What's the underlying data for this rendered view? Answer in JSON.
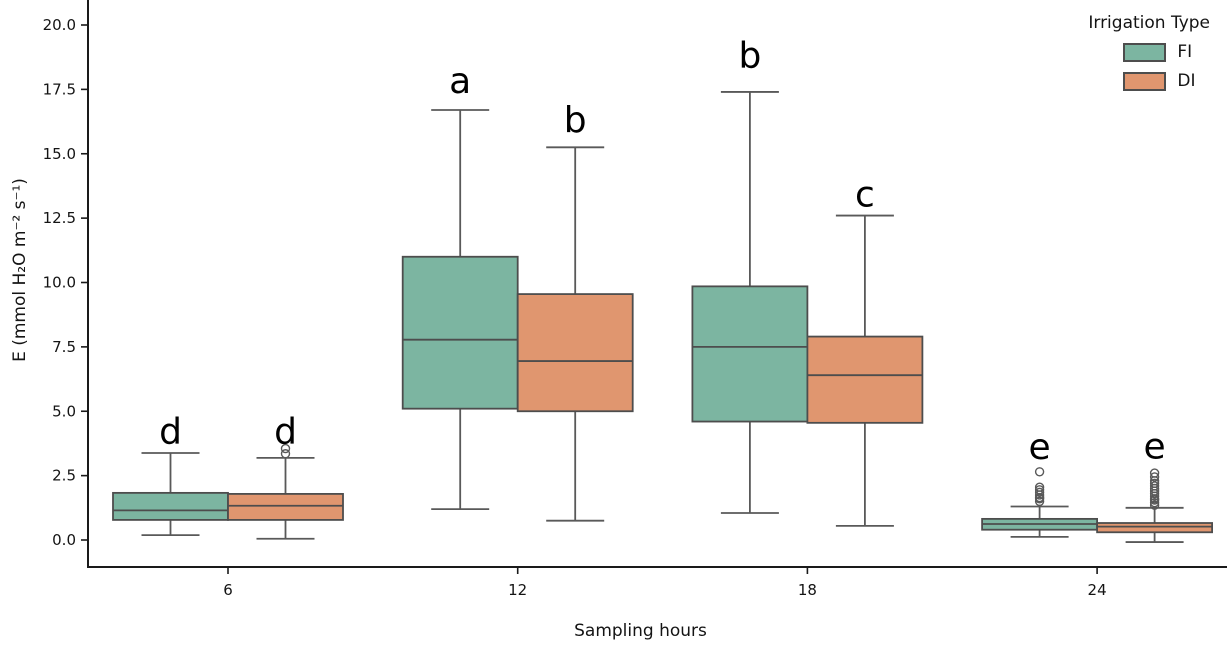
{
  "chart_data": {
    "type": "grouped_boxplot",
    "title": "",
    "xlabel": "Sampling hours",
    "ylabel": "E (mmol H₂O m⁻² s⁻¹)",
    "categories": [
      "6",
      "12",
      "18",
      "24"
    ],
    "ytick_labels": [
      "0.0",
      "2.5",
      "5.0",
      "7.5",
      "10.0",
      "12.5",
      "15.0",
      "17.5",
      "20.0"
    ],
    "ylim": [
      -1.05,
      22.0
    ],
    "grid": "off",
    "legend": {
      "title": "Irrigation Type",
      "position": "upper right",
      "entries": [
        {
          "label": "FI",
          "color": "#7cb5a1"
        },
        {
          "label": "DI",
          "color": "#e0966f"
        }
      ]
    },
    "style": {
      "box_edge_color": "#4d4d4d",
      "whisker_color": "#595959",
      "spine_color": "#1a1a1a",
      "text_color": "#141414"
    },
    "series": [
      {
        "name": "FI",
        "color": "#7cb5a1",
        "boxes": [
          {
            "category": "6",
            "whisker_low": 0.19,
            "q1": 0.78,
            "median": 1.15,
            "q3": 1.83,
            "whisker_high": 3.38,
            "outliers": []
          },
          {
            "category": "12",
            "whisker_low": 1.2,
            "q1": 5.1,
            "median": 7.78,
            "q3": 11.0,
            "whisker_high": 16.7,
            "outliers": []
          },
          {
            "category": "18",
            "whisker_low": 1.05,
            "q1": 4.6,
            "median": 7.5,
            "q3": 9.85,
            "whisker_high": 17.4,
            "outliers": []
          },
          {
            "category": "24",
            "whisker_low": 0.12,
            "q1": 0.4,
            "median": 0.62,
            "q3": 0.82,
            "whisker_high": 1.3,
            "outliers": [
              1.5,
              1.6,
              1.65,
              1.75,
              1.85,
              1.95,
              2.05,
              2.65
            ]
          }
        ]
      },
      {
        "name": "DI",
        "color": "#e0966f",
        "boxes": [
          {
            "category": "6",
            "whisker_low": 0.05,
            "q1": 0.78,
            "median": 1.33,
            "q3": 1.79,
            "whisker_high": 3.19,
            "outliers": [
              3.35,
              3.55
            ]
          },
          {
            "category": "12",
            "whisker_low": 0.75,
            "q1": 5.0,
            "median": 6.95,
            "q3": 9.55,
            "whisker_high": 15.25,
            "outliers": []
          },
          {
            "category": "18",
            "whisker_low": 0.55,
            "q1": 4.55,
            "median": 6.4,
            "q3": 7.9,
            "whisker_high": 12.6,
            "outliers": []
          },
          {
            "category": "24",
            "whisker_low": -0.08,
            "q1": 0.3,
            "median": 0.52,
            "q3": 0.66,
            "whisker_high": 1.25,
            "outliers": [
              1.35,
              1.45,
              1.55,
              1.6,
              1.7,
              1.8,
              1.9,
              2.0,
              2.1,
              2.2,
              2.3,
              2.45,
              2.6
            ]
          }
        ]
      }
    ],
    "annotations": [
      {
        "text": "d",
        "category": "6",
        "series": "FI",
        "y": 4.2
      },
      {
        "text": "d",
        "category": "6",
        "series": "DI",
        "y": 4.2
      },
      {
        "text": "a",
        "category": "12",
        "series": "FI",
        "y": 17.8
      },
      {
        "text": "b",
        "category": "12",
        "series": "DI",
        "y": 16.3
      },
      {
        "text": "b",
        "category": "18",
        "series": "FI",
        "y": 18.8
      },
      {
        "text": "c",
        "category": "18",
        "series": "DI",
        "y": 13.4
      },
      {
        "text": "e",
        "category": "24",
        "series": "FI",
        "y": 3.6
      },
      {
        "text": "e",
        "category": "24",
        "series": "DI",
        "y": 3.62
      }
    ]
  }
}
